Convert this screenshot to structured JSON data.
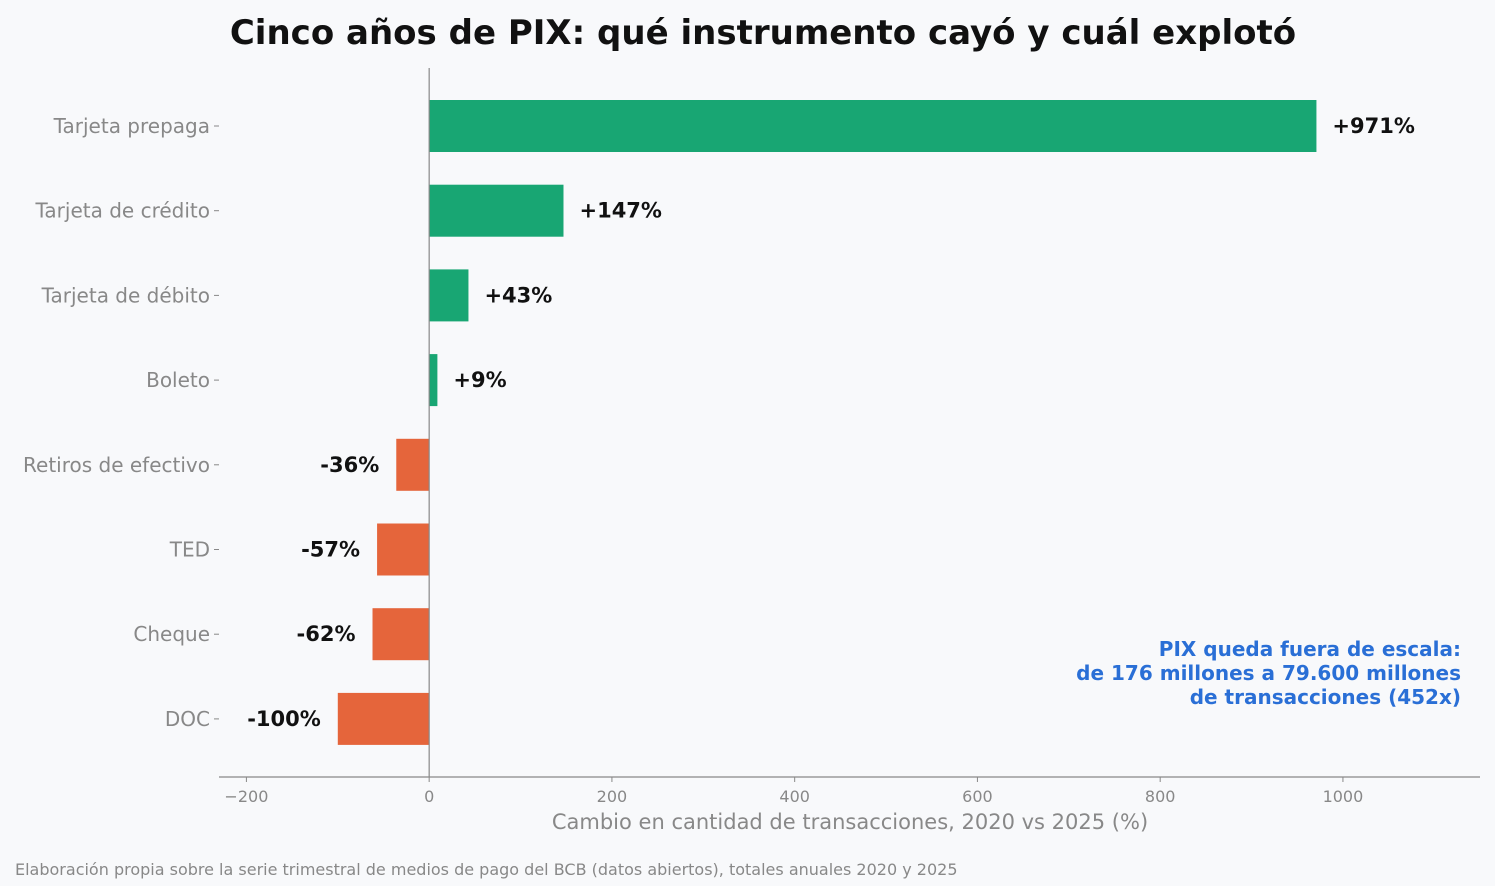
{
  "chart_data": {
    "type": "bar",
    "orientation": "horizontal",
    "title": "Cinco años de PIX: qué instrumento cayó y cuál explotó",
    "xlabel": "Cambio en cantidad de transacciones, 2020 vs 2025 (%)",
    "ylabel": "",
    "xlim": [
      -230,
      1150
    ],
    "xticks": [
      -200,
      0,
      200,
      400,
      600,
      800,
      1000
    ],
    "xtick_labels": [
      "−200",
      "0",
      "200",
      "400",
      "600",
      "800",
      "1000"
    ],
    "categories": [
      "Tarjeta prepaga",
      "Tarjeta de crédito",
      "Tarjeta de débito",
      "Boleto",
      "Retiros de efectivo",
      "TED",
      "Cheque",
      "DOC"
    ],
    "values": [
      971,
      147,
      43,
      9,
      -36,
      -57,
      -62,
      -100
    ],
    "data_labels": [
      "+971%",
      "+147%",
      "+43%",
      "+9%",
      "-36%",
      "-57%",
      "-62%",
      "-100%"
    ],
    "colors": {
      "positive": "#18a673",
      "negative": "#e5653b",
      "annotation": "#2a6fd6",
      "axis": "#888888"
    },
    "grid": false,
    "annotation": [
      "PIX queda fuera de escala:",
      "de 176 millones a 79.600 millones",
      "de transacciones (452x)"
    ],
    "source_note": "Elaboración propia sobre la serie trimestral de medios de pago del BCB (datos abiertos), totales anuales 2020 y 2025"
  }
}
